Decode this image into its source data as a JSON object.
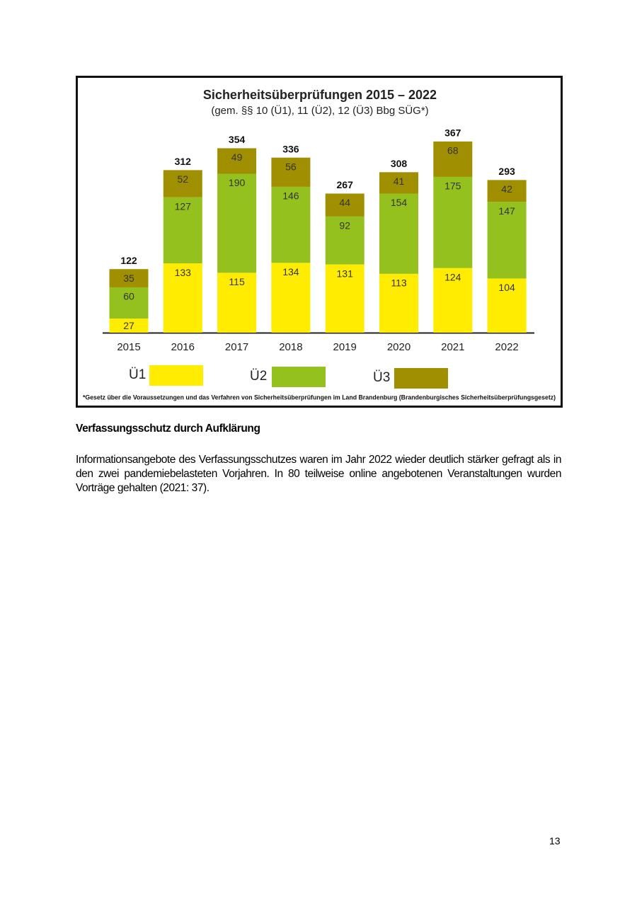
{
  "chart_data": {
    "type": "stacked_bar",
    "title": "Sicherheitsüberprüfungen 2015 – 2022",
    "subtitle": "(gem. §§ 10 (Ü1), 11 (Ü2), 12 (Ü3) Bbg SÜG*)",
    "categories": [
      "2015",
      "2016",
      "2017",
      "2018",
      "2019",
      "2020",
      "2021",
      "2022"
    ],
    "series": [
      {
        "name": "Ü1",
        "color": "#ffec00",
        "values": [
          27,
          133,
          115,
          134,
          131,
          113,
          124,
          104
        ]
      },
      {
        "name": "Ü2",
        "color": "#95c11f",
        "values": [
          60,
          127,
          190,
          146,
          92,
          154,
          175,
          147
        ]
      },
      {
        "name": "Ü3",
        "color": "#a08f00",
        "values": [
          35,
          52,
          49,
          56,
          44,
          41,
          68,
          42
        ]
      }
    ],
    "totals": [
      122,
      312,
      354,
      336,
      267,
      308,
      367,
      293
    ],
    "footnote": "*Gesetz über die Voraussetzungen und das Verfahren von Sicherheitsüberprüfungen im Land Brandenburg (Brandenburgisches Sicherheitsüberprüfungsgesetz)"
  },
  "document": {
    "heading": "Verfassungsschutz durch Aufklärung",
    "paragraph": "Informationsangebote des Verfassungsschutzes waren im Jahr 2022 wieder deutlich stärker gefragt als in den zwei pandemiebelasteten Vorjahren. In 80 teilweise online angebotenen Veranstaltungen wurden Vorträge gehalten (2021: 37).",
    "page_number": "13"
  }
}
